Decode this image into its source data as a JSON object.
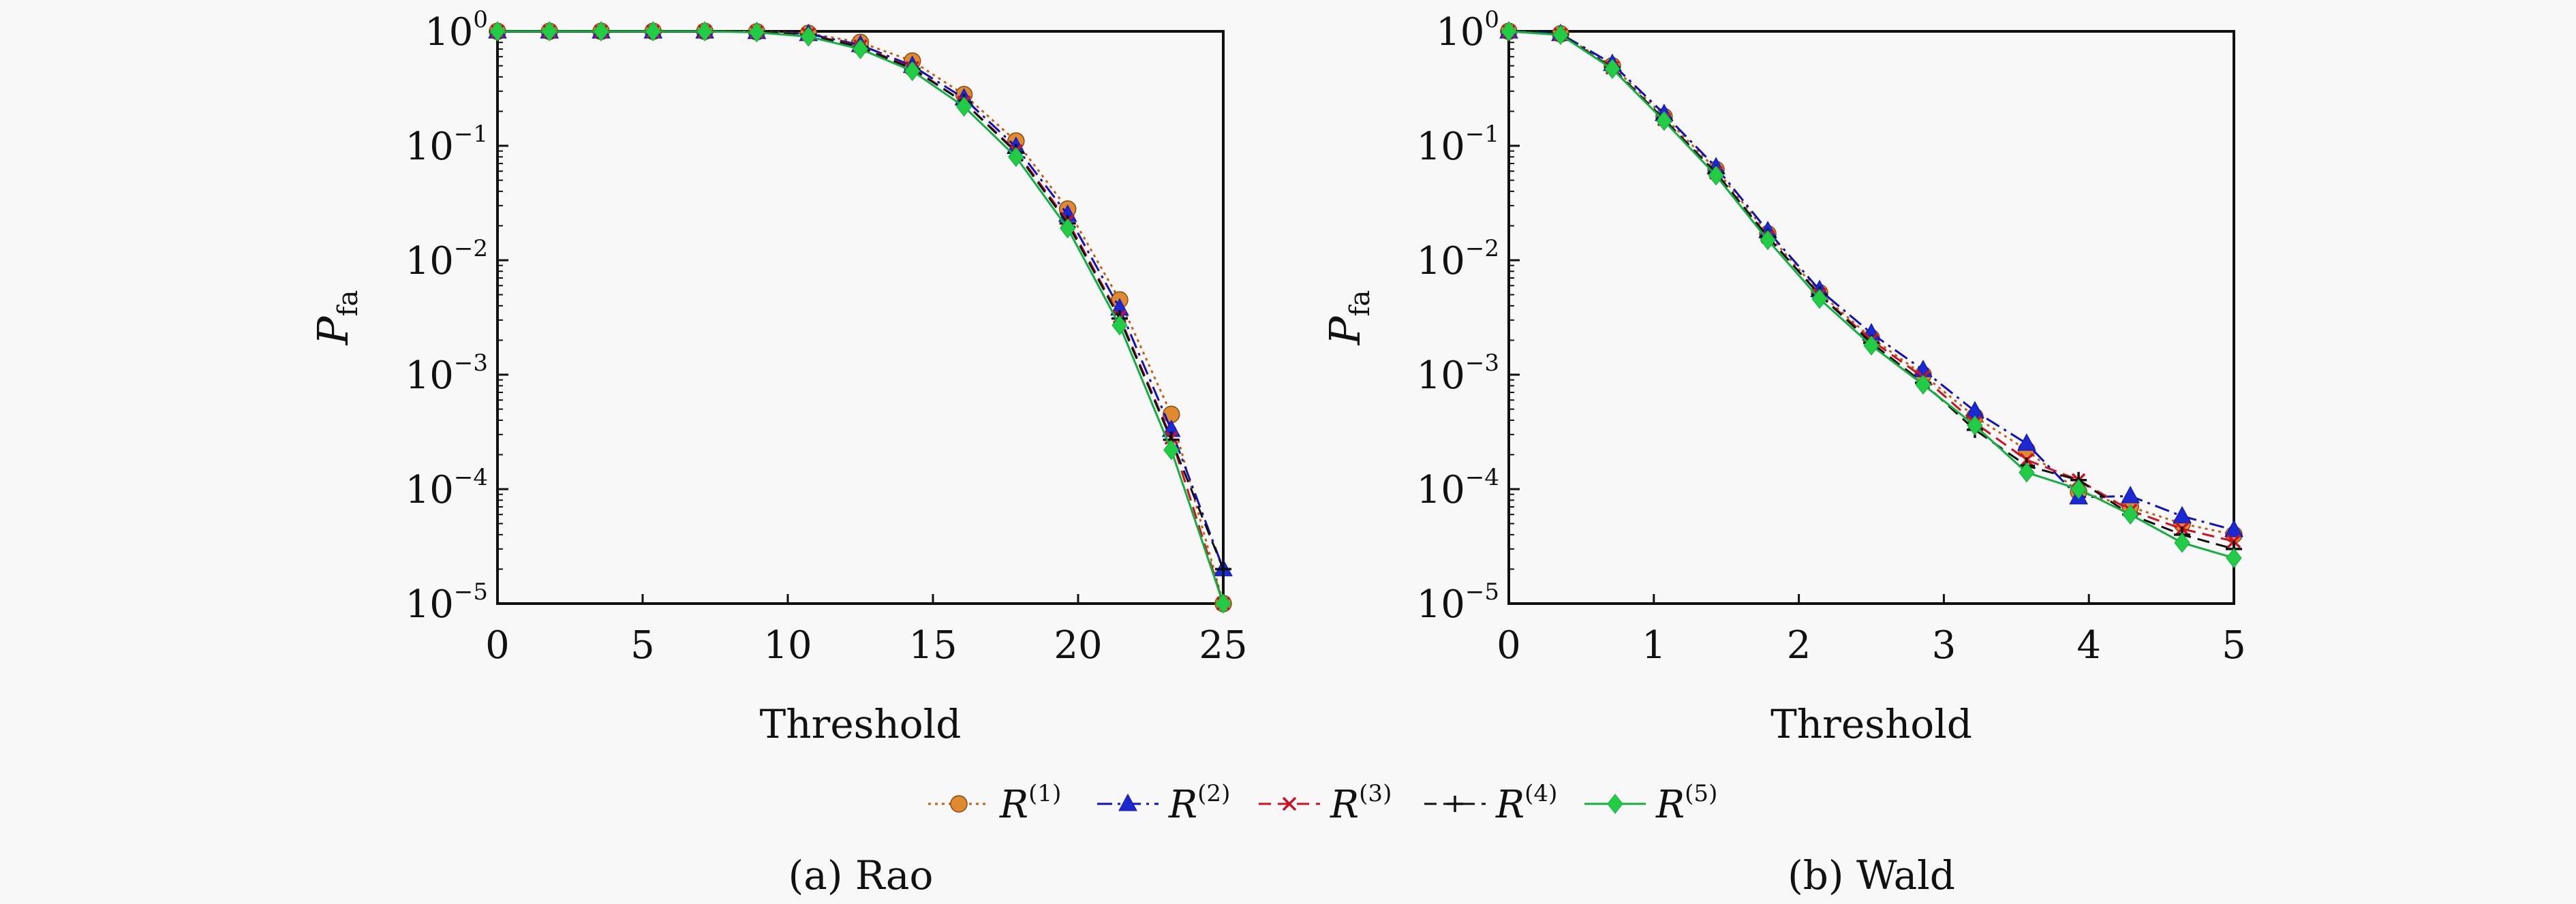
{
  "legend": {
    "entries": [
      {
        "base": "R",
        "sup": "(1)",
        "color": "#c06010",
        "dash": "dotted",
        "marker": "circle",
        "fill": "#e08a30"
      },
      {
        "base": "R",
        "sup": "(2)",
        "color": "#1010c0",
        "dash": "dashdot",
        "marker": "triangle",
        "fill": "#1a2ad0"
      },
      {
        "base": "R",
        "sup": "(3)",
        "color": "#d01020",
        "dash": "dashed",
        "marker": "x",
        "fill": "#d01020"
      },
      {
        "base": "R",
        "sup": "(4)",
        "color": "#111111",
        "dash": "dashed",
        "marker": "plus",
        "fill": "#111111"
      },
      {
        "base": "R",
        "sup": "(5)",
        "color": "#10b040",
        "dash": "solid",
        "marker": "diamond",
        "fill": "#22cc44"
      }
    ]
  },
  "chart_data": [
    {
      "type": "line",
      "caption": "(a) Rao",
      "xlabel": "Threshold",
      "ylabel": {
        "base": "P",
        "sub": "fa"
      },
      "xlim": [
        0,
        25
      ],
      "ylim": [
        1e-05,
        1
      ],
      "yscale": "log",
      "xticks": [
        0,
        5,
        10,
        15,
        20,
        25
      ],
      "yticks": [
        {
          "value": 1,
          "base": "10",
          "exp": "0"
        },
        {
          "value": 0.1,
          "base": "10",
          "exp": "−1"
        },
        {
          "value": 0.01,
          "base": "10",
          "exp": "−2"
        },
        {
          "value": 0.001,
          "base": "10",
          "exp": "−3"
        },
        {
          "value": 0.0001,
          "base": "10",
          "exp": "−4"
        },
        {
          "value": 1e-05,
          "base": "10",
          "exp": "−5"
        }
      ],
      "x": [
        0,
        1.79,
        3.57,
        5.36,
        7.14,
        8.93,
        10.71,
        12.5,
        14.29,
        16.07,
        17.86,
        19.64,
        21.43,
        23.21,
        25
      ],
      "series": [
        {
          "name": "R(1)",
          "values": [
            1,
            1,
            1,
            1,
            1,
            0.99,
            0.96,
            0.8,
            0.55,
            0.28,
            0.11,
            0.028,
            0.0045,
            0.00045,
            1e-05
          ]
        },
        {
          "name": "R(2)",
          "values": [
            1,
            1,
            1,
            1,
            1,
            0.99,
            0.95,
            0.76,
            0.5,
            0.26,
            0.098,
            0.025,
            0.0038,
            0.00033,
            2e-05
          ]
        },
        {
          "name": "R(3)",
          "values": [
            1,
            1,
            1,
            1,
            1,
            0.99,
            0.94,
            0.74,
            0.48,
            0.24,
            0.09,
            0.022,
            0.0032,
            0.00028,
            1e-05
          ]
        },
        {
          "name": "R(4)",
          "values": [
            1,
            1,
            1,
            1,
            1,
            0.99,
            0.93,
            0.73,
            0.47,
            0.24,
            0.088,
            0.021,
            0.0031,
            0.00027,
            2e-05
          ]
        },
        {
          "name": "R(5)",
          "values": [
            1,
            1,
            1,
            1,
            1,
            0.98,
            0.9,
            0.7,
            0.45,
            0.22,
            0.08,
            0.019,
            0.0027,
            0.00022,
            1e-05
          ]
        }
      ]
    },
    {
      "type": "line",
      "caption": "(b) Wald",
      "xlabel": "Threshold",
      "ylabel": {
        "base": "P",
        "sub": "fa"
      },
      "xlim": [
        0,
        5
      ],
      "ylim": [
        1e-05,
        1
      ],
      "yscale": "log",
      "xticks": [
        0,
        1,
        2,
        3,
        4,
        5
      ],
      "yticks": [
        {
          "value": 1,
          "base": "10",
          "exp": "0"
        },
        {
          "value": 0.1,
          "base": "10",
          "exp": "−1"
        },
        {
          "value": 0.01,
          "base": "10",
          "exp": "−2"
        },
        {
          "value": 0.001,
          "base": "10",
          "exp": "−3"
        },
        {
          "value": 0.0001,
          "base": "10",
          "exp": "−4"
        },
        {
          "value": 1e-05,
          "base": "10",
          "exp": "−5"
        }
      ],
      "x": [
        0,
        0.357,
        0.714,
        1.071,
        1.429,
        1.786,
        2.143,
        2.5,
        2.857,
        3.214,
        3.571,
        3.929,
        4.286,
        4.643,
        5
      ],
      "series": [
        {
          "name": "R(1)",
          "values": [
            1,
            0.95,
            0.5,
            0.18,
            0.062,
            0.017,
            0.0052,
            0.0021,
            0.001,
            0.00043,
            0.00022,
            9.5e-05,
            7e-05,
            5e-05,
            4e-05
          ]
        },
        {
          "name": "R(2)",
          "values": [
            1,
            0.95,
            0.52,
            0.19,
            0.065,
            0.018,
            0.0055,
            0.0023,
            0.0011,
            0.00048,
            0.00025,
            8.5e-05,
            8.7e-05,
            5.8e-05,
            4.4e-05
          ]
        },
        {
          "name": "R(3)",
          "values": [
            1,
            0.94,
            0.48,
            0.17,
            0.058,
            0.016,
            0.005,
            0.002,
            0.00095,
            0.00038,
            0.00018,
            0.00012,
            6.5e-05,
            4.5e-05,
            3.5e-05
          ]
        },
        {
          "name": "R(4)",
          "values": [
            1,
            0.94,
            0.48,
            0.17,
            0.058,
            0.016,
            0.005,
            0.0019,
            0.00085,
            0.00033,
            0.00016,
            0.00012,
            6e-05,
            4e-05,
            3e-05
          ]
        },
        {
          "name": "R(5)",
          "values": [
            1,
            0.93,
            0.47,
            0.165,
            0.055,
            0.015,
            0.0046,
            0.0018,
            0.00082,
            0.00036,
            0.00014,
            0.0001,
            6e-05,
            3.4e-05,
            2.5e-05
          ]
        }
      ]
    }
  ]
}
